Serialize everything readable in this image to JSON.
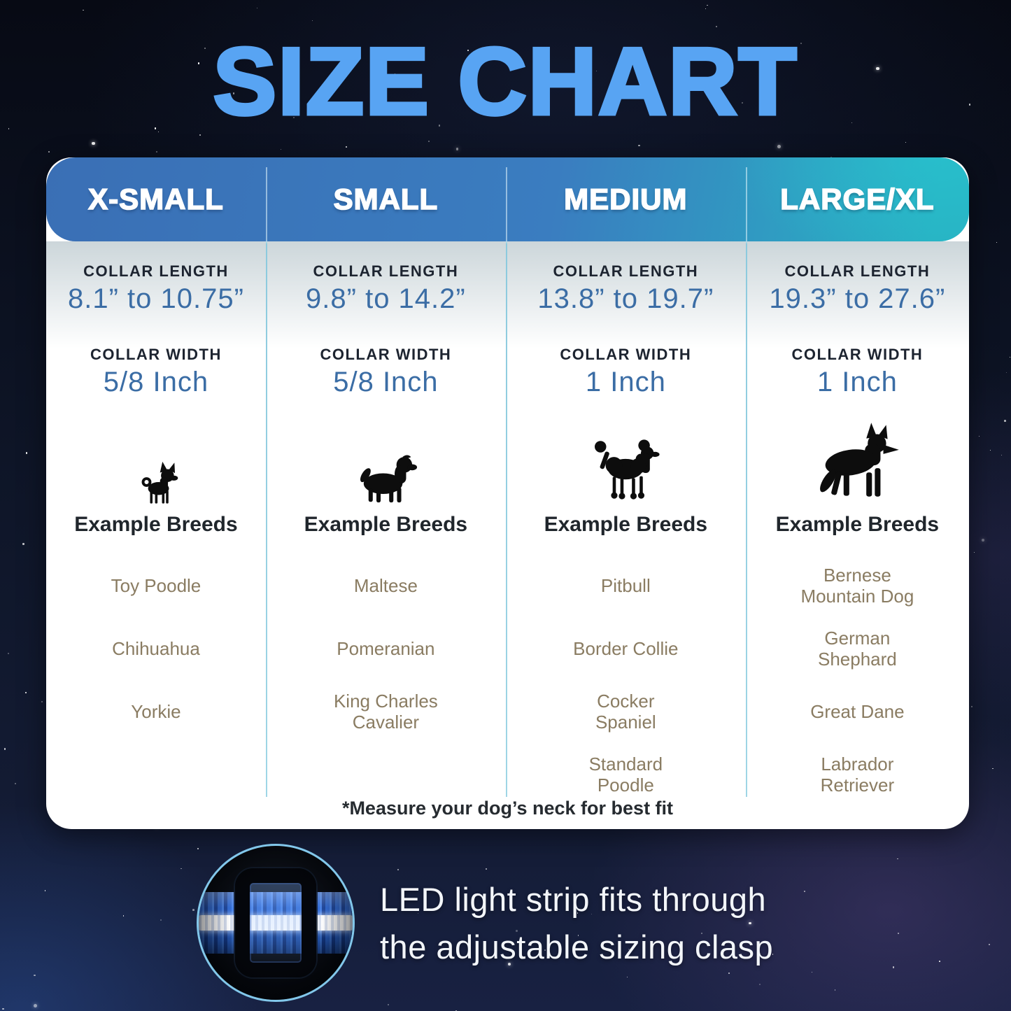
{
  "title": "SIZE CHART",
  "table": {
    "columns": [
      {
        "size_label": "X-SMALL",
        "collar_length_label": "COLLAR LENGTH",
        "collar_length_value": "8.1” to 10.75”",
        "collar_width_label": "COLLAR WIDTH",
        "collar_width_value": "5/8 Inch",
        "dog_icon": "chihuahua-icon",
        "example_breeds_label": "Example Breeds",
        "breeds": [
          "Toy Poodle",
          "Chihuahua",
          "Yorkie"
        ]
      },
      {
        "size_label": "SMALL",
        "collar_length_label": "COLLAR LENGTH",
        "collar_length_value": "9.8” to 14.2”",
        "collar_width_label": "COLLAR WIDTH",
        "collar_width_value": "5/8 Inch",
        "dog_icon": "cavalier-spaniel-icon",
        "example_breeds_label": "Example Breeds",
        "breeds": [
          "Maltese",
          "Pomeranian",
          "King Charles Cavalier"
        ]
      },
      {
        "size_label": "MEDIUM",
        "collar_length_label": "COLLAR LENGTH",
        "collar_length_value": "13.8” to 19.7”",
        "collar_width_label": "COLLAR WIDTH",
        "collar_width_value": "1 Inch",
        "dog_icon": "poodle-icon",
        "example_breeds_label": "Example Breeds",
        "breeds": [
          "Pitbull",
          "Border Collie",
          "Cocker Spaniel",
          "Standard Poodle"
        ]
      },
      {
        "size_label": "LARGE/XL",
        "collar_length_label": "COLLAR LENGTH",
        "collar_length_value": "19.3” to 27.6”",
        "collar_width_label": "COLLAR WIDTH",
        "collar_width_value": "1 Inch",
        "dog_icon": "german-shepherd-icon",
        "example_breeds_label": "Example Breeds",
        "breeds": [
          "Bernese Mountain Dog",
          "German Shephard",
          "Great Dane",
          "Labrador Retriever"
        ]
      }
    ],
    "footnote": "*Measure your dog’s neck for best fit"
  },
  "callout": {
    "line1": "LED light strip fits through",
    "line2": "the adjustable sizing clasp",
    "image": "collar-clasp-photo"
  },
  "colors": {
    "title_blue": "#58a4f3",
    "header_gradient_left": "#3a6fb5",
    "header_gradient_right": "#28b2c3",
    "header_text": "#ffffff",
    "value_blue": "#3b6da5",
    "label_dark": "#1d2430",
    "breed_tan": "#8a7c62",
    "divider_teal": "#8ccade",
    "card_white": "#ffffff",
    "background_navy": "#0e1527",
    "circle_border_blue": "#82c7ea",
    "strap_blue": "#2a66d4",
    "stripe_white": "#f4f7ff"
  }
}
